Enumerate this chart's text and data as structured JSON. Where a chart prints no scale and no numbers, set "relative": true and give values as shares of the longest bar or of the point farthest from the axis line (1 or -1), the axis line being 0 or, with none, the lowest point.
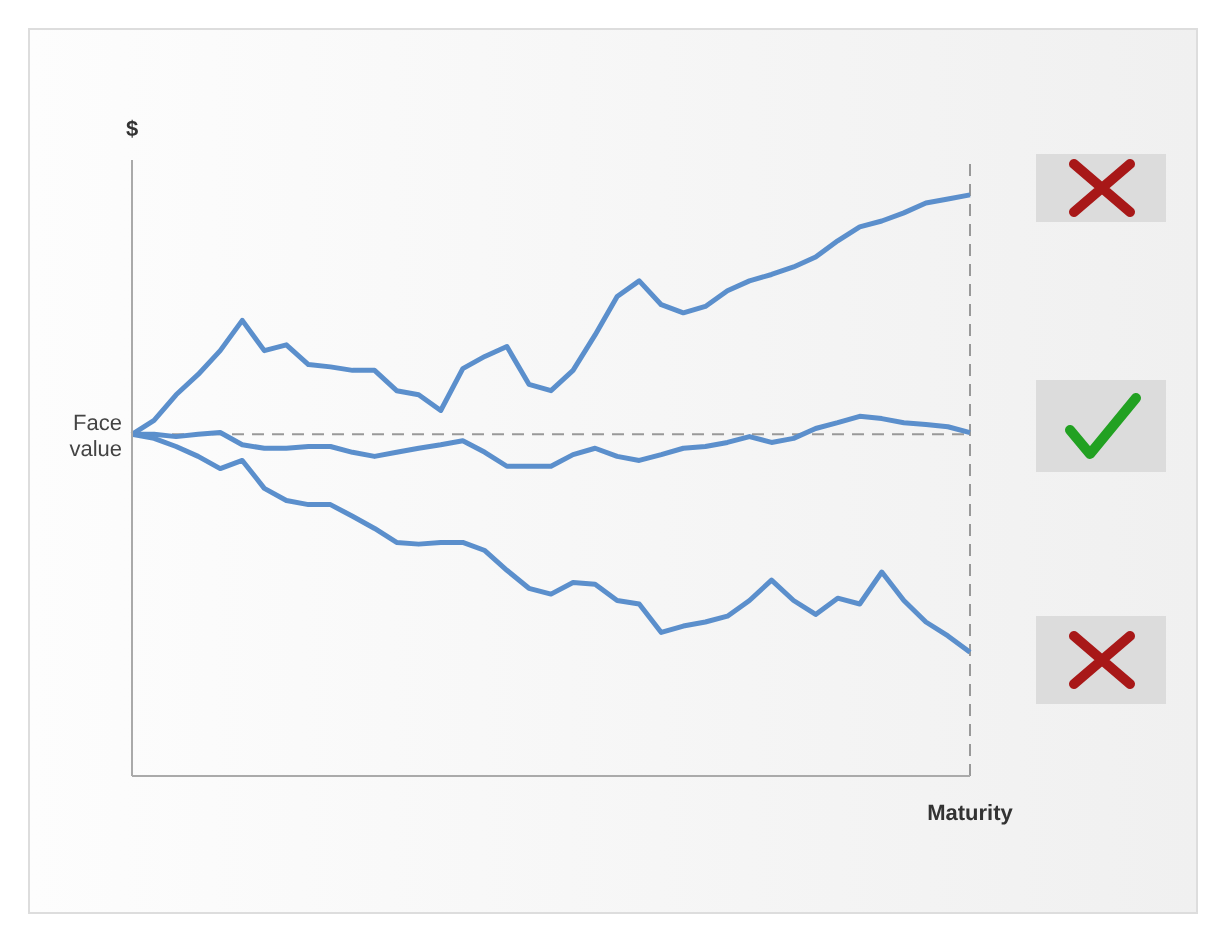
{
  "chart_data": {
    "type": "line",
    "relative": true,
    "ylabel": "$",
    "categories": [
      null,
      null,
      null,
      null,
      null,
      null,
      null,
      null,
      null,
      null,
      null,
      null,
      null,
      null,
      null,
      null,
      null,
      null,
      null,
      null,
      null,
      null,
      null,
      null,
      null,
      null,
      null,
      null,
      null,
      null,
      null,
      null,
      null,
      null,
      null,
      null,
      null,
      null,
      null
    ],
    "series": [
      {
        "color": "#5b8fcc",
        "values": [
          0.588,
          0.612,
          0.656,
          0.691,
          0.732,
          0.784,
          0.732,
          0.742,
          0.708,
          0.704,
          0.698,
          0.698,
          0.663,
          0.656,
          0.629,
          0.701,
          0.722,
          0.739,
          0.674,
          0.663,
          0.698,
          0.759,
          0.825,
          0.852,
          0.811,
          0.797,
          0.808,
          0.835,
          0.852,
          0.863,
          0.876,
          0.893,
          0.921,
          0.945,
          0.955,
          0.969,
          0.986,
          0.993,
          1
        ]
      },
      {
        "color": "#5b8fcc",
        "values": [
          0.588,
          0.588,
          0.584,
          0.588,
          0.591,
          0.57,
          0.564,
          0.564,
          0.567,
          0.567,
          0.557,
          0.55,
          0.557,
          0.564,
          0.57,
          0.577,
          0.557,
          0.533,
          0.533,
          0.533,
          0.553,
          0.564,
          0.55,
          0.543,
          0.553,
          0.564,
          0.567,
          0.574,
          0.584,
          0.574,
          0.581,
          0.598,
          0.608,
          0.619,
          0.615,
          0.608,
          0.605,
          0.601,
          0.591
        ]
      },
      {
        "color": "#5b8fcc",
        "values": [
          0.588,
          0.581,
          0.567,
          0.55,
          0.529,
          0.543,
          0.495,
          0.474,
          0.467,
          0.467,
          0.447,
          0.426,
          0.402,
          0.399,
          0.402,
          0.402,
          0.388,
          0.354,
          0.323,
          0.313,
          0.333,
          0.33,
          0.302,
          0.296,
          0.247,
          0.258,
          0.265,
          0.275,
          0.302,
          0.337,
          0.302,
          0.278,
          0.306,
          0.296,
          0.351,
          0.302,
          0.265,
          0.241,
          0.213
        ]
      }
    ],
    "ref_lines": [
      {
        "axis": "y",
        "value": 0.588,
        "label": "Face value",
        "color": "#999999",
        "line_style": "dashed"
      },
      {
        "axis": "x",
        "label": "Maturity",
        "color": "#999999",
        "line_style": "dashed"
      }
    ],
    "marker": "none",
    "line_style": "solid"
  }
}
